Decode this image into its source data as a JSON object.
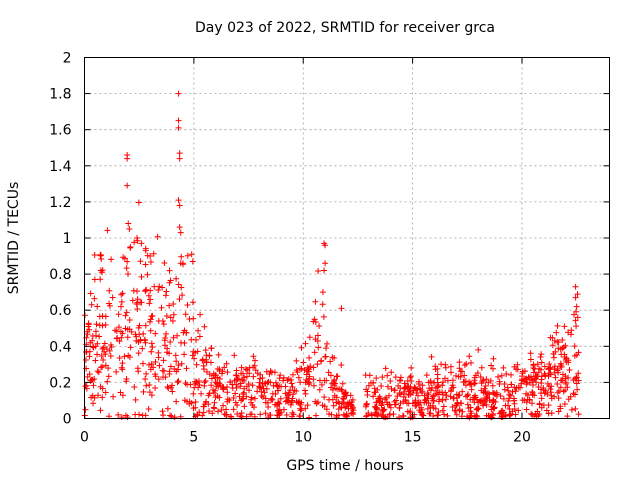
{
  "chart_data": {
    "type": "scatter",
    "title": "Day 023 of 2022, SRMTID for receiver grca",
    "xlabel": "GPS time / hours",
    "ylabel": "SRMTID / TECUs",
    "xlim": [
      0,
      24
    ],
    "ylim": [
      0,
      2
    ],
    "grid": true,
    "marker": "+",
    "marker_color": "#ff0000",
    "x_ticks": [
      0,
      5,
      10,
      15,
      20
    ],
    "x_tick_labels": [
      "0",
      "5",
      "10",
      "15",
      "20"
    ],
    "y_ticks": [
      0,
      0.2,
      0.4,
      0.6,
      0.8,
      1,
      1.2,
      1.4,
      1.6,
      1.8,
      2
    ],
    "y_tick_labels": [
      "0",
      "0.2",
      "0.4",
      "0.6",
      "0.8",
      "1",
      "1.2",
      "1.4",
      "1.6",
      "1.8",
      "2"
    ],
    "series": [
      {
        "name": "SRMTID",
        "envelope": [
          {
            "x": 0.0,
            "center": 0.35,
            "spread": 0.25
          },
          {
            "x": 0.8,
            "center": 0.45,
            "spread": 0.35
          },
          {
            "x": 1.5,
            "center": 0.35,
            "spread": 0.3
          },
          {
            "x": 2.0,
            "center": 0.5,
            "spread": 0.45
          },
          {
            "x": 3.0,
            "center": 0.45,
            "spread": 0.4
          },
          {
            "x": 4.0,
            "center": 0.4,
            "spread": 0.35
          },
          {
            "x": 4.6,
            "center": 0.45,
            "spread": 0.4
          },
          {
            "x": 5.0,
            "center": 0.3,
            "spread": 0.25
          },
          {
            "x": 6.0,
            "center": 0.15,
            "spread": 0.12
          },
          {
            "x": 8.0,
            "center": 0.15,
            "spread": 0.13
          },
          {
            "x": 9.5,
            "center": 0.1,
            "spread": 0.1
          },
          {
            "x": 10.8,
            "center": 0.35,
            "spread": 0.3
          },
          {
            "x": 11.5,
            "center": 0.15,
            "spread": 0.12
          },
          {
            "x": 12.3,
            "center": 0.05,
            "spread": 0.05
          },
          {
            "x": 12.9,
            "center": 0.1,
            "spread": 0.1
          },
          {
            "x": 15.0,
            "center": 0.12,
            "spread": 0.1
          },
          {
            "x": 17.0,
            "center": 0.15,
            "spread": 0.13
          },
          {
            "x": 19.0,
            "center": 0.12,
            "spread": 0.12
          },
          {
            "x": 21.0,
            "center": 0.2,
            "spread": 0.15
          },
          {
            "x": 22.0,
            "center": 0.25,
            "spread": 0.2
          },
          {
            "x": 22.5,
            "center": 0.3,
            "spread": 0.3
          }
        ],
        "gaps": [
          [
            12.3,
            12.85
          ]
        ],
        "x_range": [
          0.0,
          22.6
        ],
        "n_points": 1400,
        "peaks": [
          {
            "x": 1.95,
            "y": 1.46
          },
          {
            "x": 1.95,
            "y": 1.44
          },
          {
            "x": 1.95,
            "y": 1.29
          },
          {
            "x": 2.0,
            "y": 1.08
          },
          {
            "x": 2.05,
            "y": 1.05
          },
          {
            "x": 2.1,
            "y": 0.95
          },
          {
            "x": 2.4,
            "y": 1.0
          },
          {
            "x": 2.6,
            "y": 0.97
          },
          {
            "x": 2.8,
            "y": 0.93
          },
          {
            "x": 3.0,
            "y": 0.9
          },
          {
            "x": 4.3,
            "y": 1.8
          },
          {
            "x": 4.3,
            "y": 1.65
          },
          {
            "x": 4.3,
            "y": 1.61
          },
          {
            "x": 4.35,
            "y": 1.47
          },
          {
            "x": 4.35,
            "y": 1.44
          },
          {
            "x": 4.3,
            "y": 1.21
          },
          {
            "x": 4.35,
            "y": 1.18
          },
          {
            "x": 4.35,
            "y": 1.06
          },
          {
            "x": 4.4,
            "y": 1.03
          },
          {
            "x": 4.4,
            "y": 0.86
          },
          {
            "x": 4.5,
            "y": 0.86
          },
          {
            "x": 4.9,
            "y": 0.91
          },
          {
            "x": 4.95,
            "y": 0.87
          },
          {
            "x": 0.75,
            "y": 0.82
          },
          {
            "x": 0.8,
            "y": 0.81
          },
          {
            "x": 10.95,
            "y": 0.97
          },
          {
            "x": 11.0,
            "y": 0.96
          },
          {
            "x": 11.0,
            "y": 0.86
          },
          {
            "x": 10.95,
            "y": 0.82
          },
          {
            "x": 10.9,
            "y": 0.7
          },
          {
            "x": 11.75,
            "y": 0.61
          },
          {
            "x": 22.45,
            "y": 0.73
          },
          {
            "x": 22.45,
            "y": 0.67
          },
          {
            "x": 22.5,
            "y": 0.62
          },
          {
            "x": 22.55,
            "y": 0.56
          },
          {
            "x": 18.0,
            "y": 0.38
          },
          {
            "x": 21.5,
            "y": 0.43
          }
        ]
      }
    ]
  }
}
